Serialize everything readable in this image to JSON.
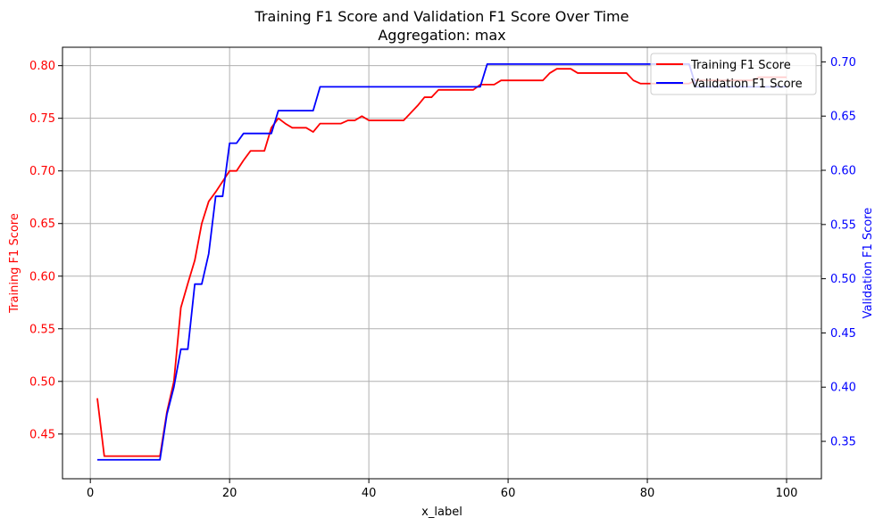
{
  "chart_data": {
    "type": "line",
    "title": "Training F1 Score and Validation F1 Score Over Time",
    "subtitle": "Aggregation: max",
    "xlabel": "x_label",
    "ylabel_left": "Training F1 Score",
    "ylabel_right": "Validation F1 Score",
    "xlim": [
      -4,
      105
    ],
    "ylim_left": [
      0.4075,
      0.8175
    ],
    "ylim_right": [
      0.3155,
      0.7135
    ],
    "xticks": [
      0,
      20,
      40,
      60,
      80,
      100
    ],
    "yticks_left": [
      0.45,
      0.5,
      0.55,
      0.6,
      0.65,
      0.7,
      0.75,
      0.8
    ],
    "yticks_right": [
      0.35,
      0.4,
      0.45,
      0.5,
      0.55,
      0.6,
      0.65,
      0.7
    ],
    "xtick_labels": [
      "0",
      "20",
      "40",
      "60",
      "80",
      "100"
    ],
    "ytick_labels_left": [
      "0.45",
      "0.50",
      "0.55",
      "0.60",
      "0.65",
      "0.70",
      "0.75",
      "0.80"
    ],
    "ytick_labels_right": [
      "0.35",
      "0.40",
      "0.45",
      "0.50",
      "0.55",
      "0.60",
      "0.65",
      "0.70"
    ],
    "grid": true,
    "legend_position": "top-right",
    "colors": {
      "left_axis": "#ff0000",
      "right_axis": "#0000ff",
      "grid": "#b0b0b0"
    },
    "series": [
      {
        "name": "Training F1 Score",
        "axis": "left",
        "color": "#ff0000",
        "x": [
          1,
          2,
          3,
          4,
          5,
          6,
          7,
          8,
          9,
          10,
          11,
          12,
          13,
          14,
          15,
          16,
          17,
          18,
          19,
          20,
          21,
          22,
          23,
          24,
          25,
          26,
          27,
          28,
          29,
          30,
          31,
          32,
          33,
          34,
          35,
          36,
          37,
          38,
          39,
          40,
          41,
          42,
          43,
          44,
          45,
          46,
          47,
          48,
          49,
          50,
          51,
          52,
          53,
          54,
          55,
          56,
          57,
          58,
          59,
          60,
          61,
          62,
          63,
          64,
          65,
          66,
          67,
          68,
          69,
          70,
          71,
          72,
          73,
          74,
          75,
          76,
          77,
          78,
          79,
          80,
          81,
          82,
          83,
          84,
          85,
          86,
          87,
          88,
          89,
          90,
          91,
          92,
          93,
          94,
          95,
          96,
          97,
          98,
          99,
          100
        ],
        "y": [
          0.484,
          0.429,
          0.429,
          0.429,
          0.429,
          0.429,
          0.429,
          0.429,
          0.429,
          0.429,
          0.471,
          0.5,
          0.57,
          0.593,
          0.615,
          0.65,
          0.671,
          0.68,
          0.69,
          0.7,
          0.7,
          0.71,
          0.719,
          0.719,
          0.719,
          0.741,
          0.75,
          0.745,
          0.741,
          0.741,
          0.741,
          0.737,
          0.745,
          0.745,
          0.745,
          0.745,
          0.748,
          0.748,
          0.752,
          0.748,
          0.748,
          0.748,
          0.748,
          0.748,
          0.748,
          0.755,
          0.762,
          0.77,
          0.77,
          0.777,
          0.777,
          0.777,
          0.777,
          0.777,
          0.777,
          0.782,
          0.782,
          0.782,
          0.786,
          0.786,
          0.786,
          0.786,
          0.786,
          0.786,
          0.786,
          0.793,
          0.797,
          0.797,
          0.797,
          0.793,
          0.793,
          0.793,
          0.793,
          0.793,
          0.793,
          0.793,
          0.793,
          0.786,
          0.783,
          0.783,
          0.783,
          0.783,
          0.783,
          0.783,
          0.783,
          0.783,
          0.786,
          0.786,
          0.786,
          0.786,
          0.786,
          0.786,
          0.786,
          0.786,
          0.786,
          0.789,
          0.789,
          0.789,
          0.789,
          0.789
        ]
      },
      {
        "name": "Validation F1 Score",
        "axis": "right",
        "color": "#0000ff",
        "x": [
          1,
          2,
          3,
          4,
          5,
          6,
          7,
          8,
          9,
          10,
          11,
          12,
          13,
          14,
          15,
          16,
          17,
          18,
          19,
          20,
          21,
          22,
          23,
          24,
          25,
          26,
          27,
          28,
          29,
          30,
          31,
          32,
          33,
          34,
          35,
          36,
          37,
          38,
          39,
          40,
          41,
          42,
          43,
          44,
          45,
          46,
          47,
          48,
          49,
          50,
          51,
          52,
          53,
          54,
          55,
          56,
          57,
          58,
          59,
          60,
          61,
          62,
          63,
          64,
          65,
          66,
          67,
          68,
          69,
          70,
          71,
          72,
          73,
          74,
          75,
          76,
          77,
          78,
          79,
          80,
          81,
          82,
          83,
          84,
          85,
          86,
          87,
          88,
          89,
          90,
          91,
          92,
          93,
          94,
          95,
          96,
          97,
          98,
          99,
          100
        ],
        "y": [
          0.333,
          0.333,
          0.333,
          0.333,
          0.333,
          0.333,
          0.333,
          0.333,
          0.333,
          0.333,
          0.375,
          0.4,
          0.435,
          0.435,
          0.495,
          0.495,
          0.523,
          0.576,
          0.576,
          0.625,
          0.625,
          0.634,
          0.634,
          0.634,
          0.634,
          0.634,
          0.655,
          0.655,
          0.655,
          0.655,
          0.655,
          0.655,
          0.677,
          0.677,
          0.677,
          0.677,
          0.677,
          0.677,
          0.677,
          0.677,
          0.677,
          0.677,
          0.677,
          0.677,
          0.677,
          0.677,
          0.677,
          0.677,
          0.677,
          0.677,
          0.677,
          0.677,
          0.677,
          0.677,
          0.677,
          0.677,
          0.698,
          0.698,
          0.698,
          0.698,
          0.698,
          0.698,
          0.698,
          0.698,
          0.698,
          0.698,
          0.698,
          0.698,
          0.698,
          0.698,
          0.698,
          0.698,
          0.698,
          0.698,
          0.698,
          0.698,
          0.698,
          0.698,
          0.698,
          0.698,
          0.698,
          0.698,
          0.698,
          0.698,
          0.698,
          0.698,
          0.677,
          0.677,
          0.677,
          0.677,
          0.677,
          0.677,
          0.677,
          0.677,
          0.677,
          0.677,
          0.677,
          0.677,
          0.677,
          0.677
        ]
      }
    ]
  }
}
